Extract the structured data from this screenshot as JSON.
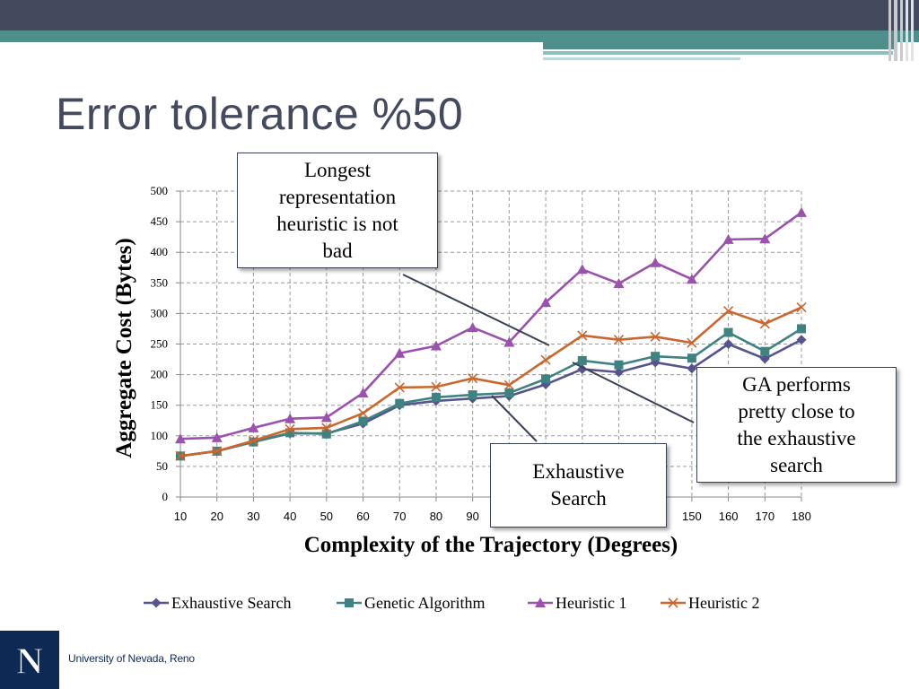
{
  "slide": {
    "title": "Error tolerance %50",
    "colors": {
      "topbar_dark": "#444a5e",
      "topbar_teal": "#4e8f8b",
      "footer_navy": "#0e2a54"
    }
  },
  "callouts": {
    "longest": [
      "Longest",
      "representation",
      "heuristic is not",
      "bad"
    ],
    "exhaustive": [
      "Exhaustive",
      "Search"
    ],
    "ga": [
      "GA performs",
      "pretty close to",
      "the exhaustive",
      "search"
    ]
  },
  "footer": {
    "logo_letter": "N",
    "university": "University of Nevada, Reno",
    "logo_icon": "university-n-logo-icon"
  },
  "chart_data": {
    "type": "line",
    "xlabel": "Complexity of the Trajectory (Degrees)",
    "ylabel": "Aggregate Cost (Bytes)",
    "ylim": [
      0,
      500
    ],
    "yticks": [
      0,
      50,
      100,
      150,
      200,
      250,
      300,
      350,
      400,
      450,
      500
    ],
    "x": [
      10,
      20,
      30,
      40,
      50,
      60,
      70,
      80,
      90,
      100,
      110,
      120,
      130,
      140,
      150,
      160,
      170,
      180
    ],
    "grid": true,
    "legend_position": "bottom",
    "series": [
      {
        "name": "Exhaustive Search",
        "color": "#55548c",
        "marker": "diamond",
        "values": [
          67,
          75,
          90,
          104,
          104,
          120,
          150,
          157,
          161,
          165,
          184,
          209,
          204,
          220,
          210,
          250,
          226,
          257
        ]
      },
      {
        "name": "Genetic Algorithm",
        "color": "#3f8281",
        "marker": "square",
        "values": [
          67,
          75,
          90,
          105,
          103,
          124,
          153,
          163,
          167,
          170,
          193,
          223,
          216,
          230,
          227,
          269,
          238,
          275
        ]
      },
      {
        "name": "Heuristic 1",
        "color": "#9b52ac",
        "marker": "triangle",
        "values": [
          95,
          97,
          113,
          128,
          130,
          170,
          235,
          247,
          277,
          253,
          318,
          372,
          349,
          383,
          356,
          421,
          422,
          465
        ]
      },
      {
        "name": "Heuristic 2",
        "color": "#c9672e",
        "marker": "x",
        "values": [
          67,
          75,
          92,
          111,
          113,
          137,
          179,
          180,
          194,
          183,
          224,
          264,
          257,
          262,
          252,
          304,
          283,
          310
        ]
      }
    ]
  }
}
